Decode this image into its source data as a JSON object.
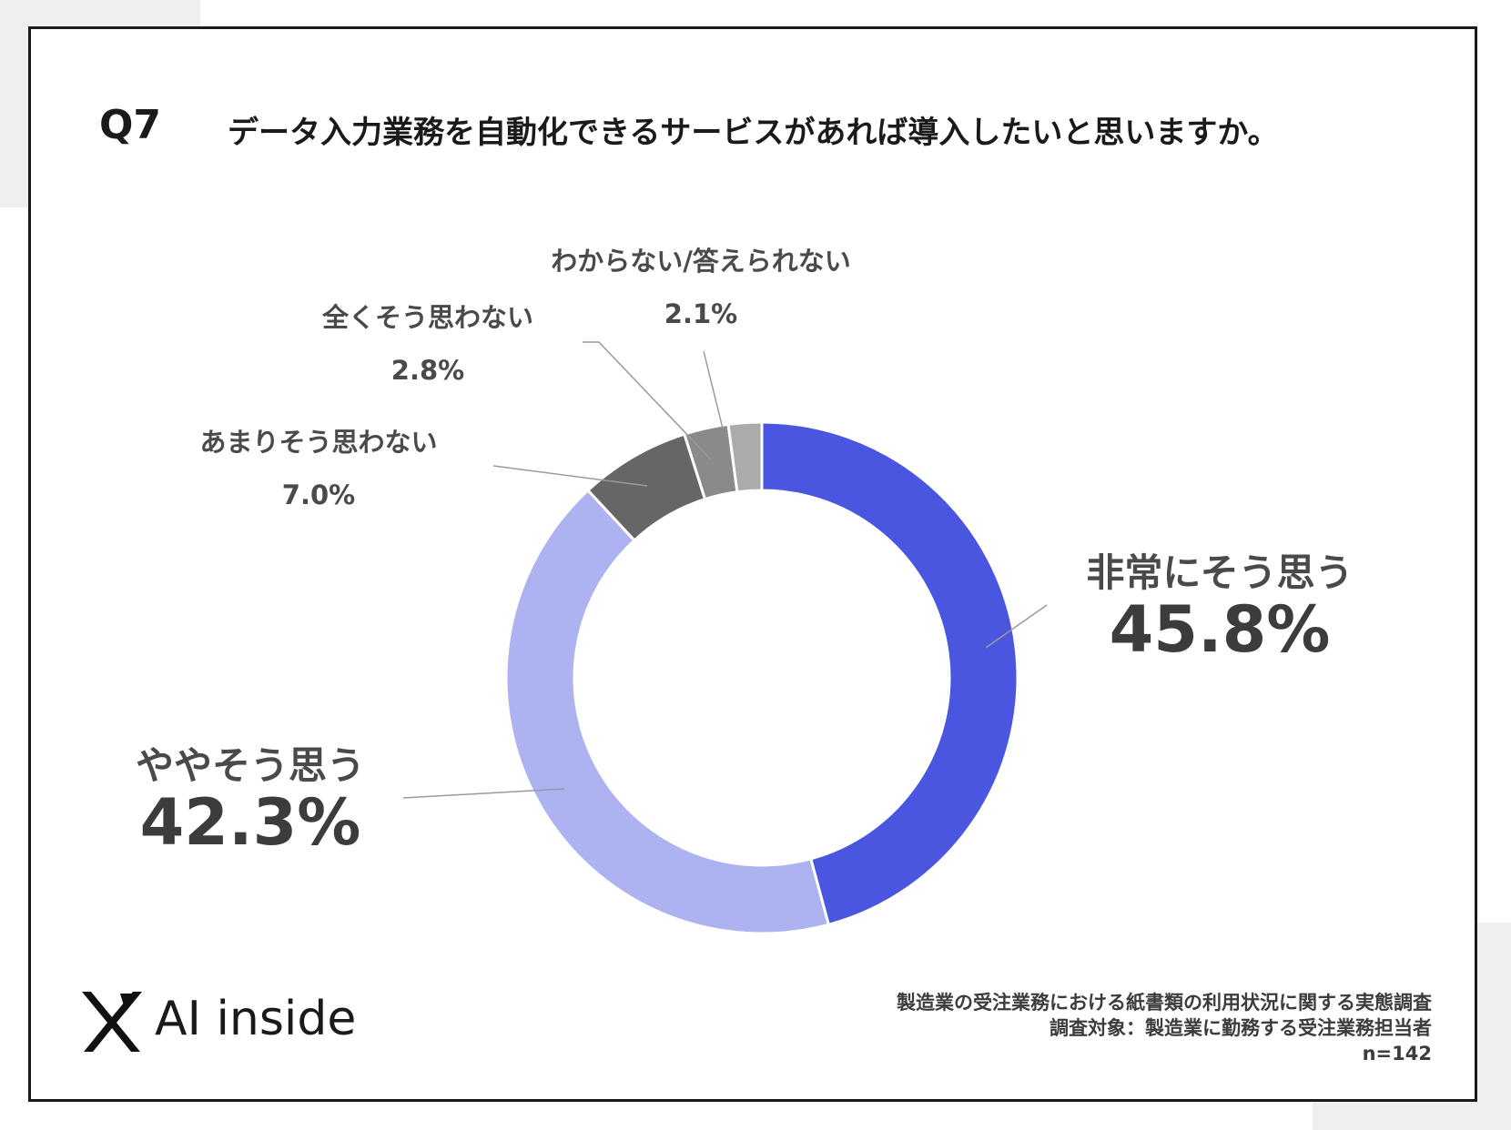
{
  "question": {
    "number": "Q7",
    "text": "データ入力業務を自動化できるサービスがあれば導入したいと思いますか。"
  },
  "chart_data": {
    "type": "pie",
    "style": "donut",
    "slices": [
      {
        "label": "非常にそう思う",
        "value": 45.8,
        "display": "45.8%",
        "color": "#4a56df"
      },
      {
        "label": "ややそう思う",
        "value": 42.3,
        "display": "42.3%",
        "color": "#adb3f1"
      },
      {
        "label": "あまりそう思わない",
        "value": 7.0,
        "display": "7.0%",
        "color": "#666666"
      },
      {
        "label": "全くそう思わない",
        "value": 2.8,
        "display": "2.8%",
        "color": "#8a8a8a"
      },
      {
        "label": "わからない/答えられない",
        "value": 2.1,
        "display": "2.1%",
        "color": "#ababab"
      }
    ],
    "start_angle_deg": 0,
    "direction": "clockwise"
  },
  "brand": {
    "name": "AI inside"
  },
  "footer": {
    "survey": "製造業の受注業務における紙書類の利用状況に関する実態調査",
    "target": "調査対象：製造業に勤務する受注業務担当者",
    "n": "n=142"
  }
}
